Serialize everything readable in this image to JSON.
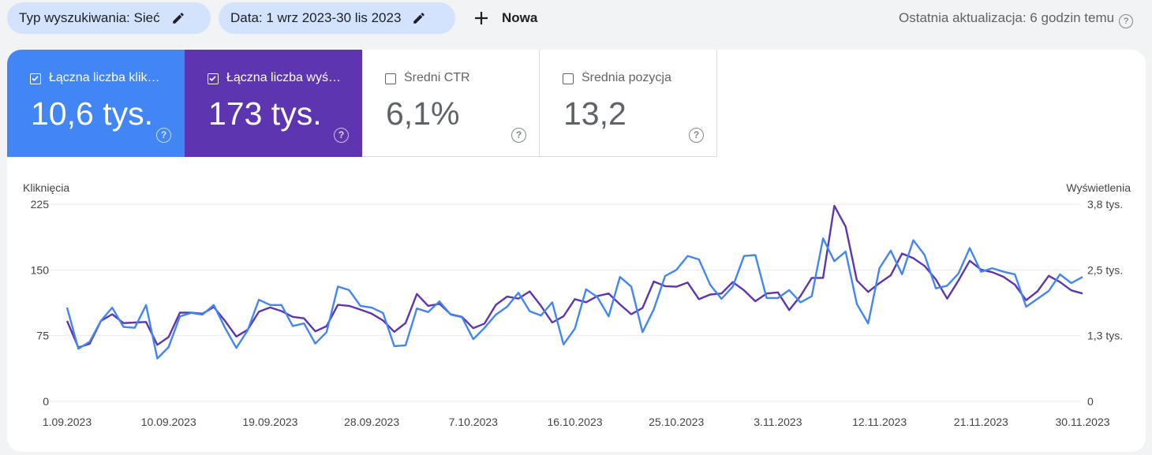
{
  "filters": {
    "search_type": "Typ wyszukiwania: Sieć",
    "date": "Data: 1 wrz 2023-30 lis 2023",
    "new_label": "Nowa"
  },
  "last_update": "Ostatnia aktualizacja: 6 godzin temu",
  "metrics": [
    {
      "label": "Łączna liczba klik…",
      "value": "10,6 tys.",
      "checked": true,
      "color": "#4285f4"
    },
    {
      "label": "Łączna liczba wyś…",
      "value": "173 tys.",
      "checked": true,
      "color": "#5e35b1"
    },
    {
      "label": "Średni CTR",
      "value": "6,1%",
      "checked": false
    },
    {
      "label": "Średnia pozycja",
      "value": "13,2",
      "checked": false
    }
  ],
  "chart_data": {
    "type": "line",
    "left_axis": {
      "label": "Kliknięcia",
      "ticks": [
        "225",
        "150",
        "75",
        "0"
      ],
      "range": [
        0,
        225
      ]
    },
    "right_axis": {
      "label": "Wyświetlenia",
      "ticks": [
        "3,8 tys.",
        "2,5 tys.",
        "1,3 tys.",
        "0"
      ],
      "range": [
        0,
        3800
      ]
    },
    "x_tick_labels": [
      "1.09.2023",
      "10.09.2023",
      "19.09.2023",
      "28.09.2023",
      "7.10.2023",
      "16.10.2023",
      "25.10.2023",
      "3.11.2023",
      "12.11.2023",
      "21.11.2023",
      "30.11.2023"
    ],
    "x": [
      "2023-09-01",
      "2023-09-02",
      "2023-09-03",
      "2023-09-04",
      "2023-09-05",
      "2023-09-06",
      "2023-09-07",
      "2023-09-08",
      "2023-09-09",
      "2023-09-10",
      "2023-09-11",
      "2023-09-12",
      "2023-09-13",
      "2023-09-14",
      "2023-09-15",
      "2023-09-16",
      "2023-09-17",
      "2023-09-18",
      "2023-09-19",
      "2023-09-20",
      "2023-09-21",
      "2023-09-22",
      "2023-09-23",
      "2023-09-24",
      "2023-09-25",
      "2023-09-26",
      "2023-09-27",
      "2023-09-28",
      "2023-09-29",
      "2023-09-30",
      "2023-10-01",
      "2023-10-02",
      "2023-10-03",
      "2023-10-04",
      "2023-10-05",
      "2023-10-06",
      "2023-10-07",
      "2023-10-08",
      "2023-10-09",
      "2023-10-10",
      "2023-10-11",
      "2023-10-12",
      "2023-10-13",
      "2023-10-14",
      "2023-10-15",
      "2023-10-16",
      "2023-10-17",
      "2023-10-18",
      "2023-10-19",
      "2023-10-20",
      "2023-10-21",
      "2023-10-22",
      "2023-10-23",
      "2023-10-24",
      "2023-10-25",
      "2023-10-26",
      "2023-10-27",
      "2023-10-28",
      "2023-10-29",
      "2023-10-30",
      "2023-10-31",
      "2023-11-01",
      "2023-11-02",
      "2023-11-03",
      "2023-11-04",
      "2023-11-05",
      "2023-11-06",
      "2023-11-07",
      "2023-11-08",
      "2023-11-09",
      "2023-11-10",
      "2023-11-11",
      "2023-11-12",
      "2023-11-13",
      "2023-11-14",
      "2023-11-15",
      "2023-11-16",
      "2023-11-17",
      "2023-11-18",
      "2023-11-19",
      "2023-11-20",
      "2023-11-21",
      "2023-11-22",
      "2023-11-23",
      "2023-11-24",
      "2023-11-25",
      "2023-11-26",
      "2023-11-27",
      "2023-11-28",
      "2023-11-29",
      "2023-11-30"
    ],
    "series": [
      {
        "name": "Kliknięcia",
        "axis": "left",
        "color": "#4285f4",
        "values": [
          107,
          60,
          68,
          92,
          107,
          85,
          84,
          110,
          49,
          62,
          97,
          101,
          99,
          110,
          84,
          61,
          81,
          116,
          110,
          110,
          86,
          89,
          66,
          79,
          131,
          127,
          109,
          107,
          101,
          63,
          64,
          106,
          102,
          114,
          99,
          96,
          71,
          84,
          99,
          108,
          124,
          103,
          98,
          113,
          65,
          83,
          128,
          119,
          97,
          142,
          131,
          79,
          105,
          143,
          150,
          166,
          162,
          133,
          117,
          131,
          166,
          167,
          118,
          118,
          127,
          113,
          120,
          186,
          160,
          171,
          111,
          89,
          152,
          172,
          145,
          184,
          167,
          129,
          132,
          146,
          175,
          148,
          152,
          148,
          145,
          108,
          117,
          126,
          145,
          135,
          142
        ]
      },
      {
        "name": "Wyświetlenia",
        "axis": "right",
        "color": "#5e35b1",
        "values": [
          1550,
          1040,
          1110,
          1550,
          1680,
          1510,
          1520,
          1530,
          1090,
          1240,
          1710,
          1710,
          1690,
          1820,
          1550,
          1250,
          1380,
          1730,
          1810,
          1740,
          1630,
          1600,
          1350,
          1450,
          1860,
          1840,
          1770,
          1690,
          1560,
          1340,
          1510,
          2070,
          1840,
          1880,
          1680,
          1630,
          1410,
          1500,
          1860,
          2020,
          1980,
          2120,
          1840,
          1520,
          1640,
          1970,
          1910,
          2030,
          2080,
          1870,
          1680,
          1800,
          2310,
          2220,
          2210,
          2290,
          1970,
          2060,
          2080,
          2300,
          2140,
          1930,
          2080,
          2100,
          1760,
          2030,
          2380,
          2380,
          3770,
          3370,
          2330,
          2110,
          2280,
          2430,
          2850,
          2760,
          2610,
          2350,
          1980,
          2330,
          2710,
          2540,
          2490,
          2400,
          2250,
          1950,
          2120,
          2420,
          2300,
          2140,
          2080
        ]
      }
    ]
  }
}
